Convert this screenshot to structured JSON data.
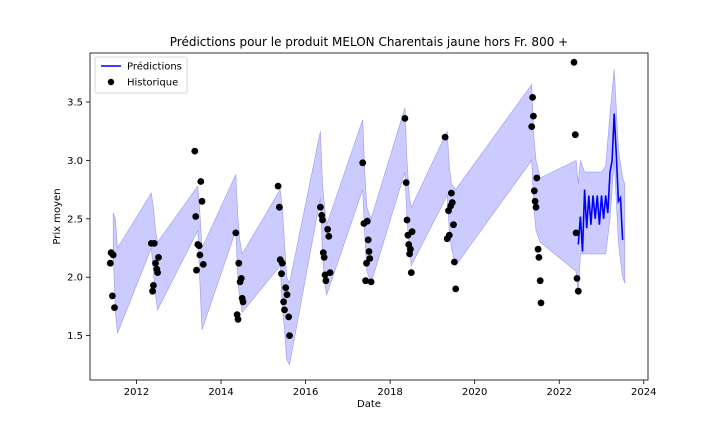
{
  "chart_data": {
    "type": "line",
    "title": "Prédictions pour le produit MELON Charentais jaune hors Fr. 800 +",
    "xlabel": "Date",
    "ylabel": "Prix moyen",
    "xlim": [
      2010.9,
      2024.1
    ],
    "ylim": [
      1.12,
      3.92
    ],
    "x_ticks": [
      2012,
      2014,
      2016,
      2018,
      2020,
      2022,
      2024
    ],
    "x_tick_labels": [
      "2012",
      "2014",
      "2016",
      "2018",
      "2020",
      "2022",
      "2024"
    ],
    "y_ticks": [
      1.5,
      2.0,
      2.5,
      3.0,
      3.5
    ],
    "y_tick_labels": [
      "1.5",
      "2.0",
      "2.5",
      "3.0",
      "3.5"
    ],
    "grid": false,
    "legend": {
      "position": "top-left",
      "entries": [
        {
          "label": "Prédictions",
          "color": "#0000ff",
          "kind": "line"
        },
        {
          "label": "Historique",
          "color": "#000000",
          "kind": "marker"
        }
      ]
    },
    "colors": {
      "prediction": "#0000ff",
      "band": "#c8c8ff",
      "band_edge": "#9a9af0",
      "history": "#000000"
    },
    "interval_band": {
      "name": "Intervalle",
      "x": [
        2011.45,
        2011.5,
        2011.55,
        2012.35,
        2012.4,
        2012.45,
        2012.5,
        2013.45,
        2013.5,
        2013.55,
        2014.35,
        2014.4,
        2014.45,
        2014.5,
        2015.4,
        2015.45,
        2015.5,
        2015.55,
        2015.62,
        2016.35,
        2016.4,
        2016.45,
        2016.5,
        2017.35,
        2017.4,
        2017.45,
        2017.55,
        2018.35,
        2018.4,
        2018.45,
        2018.5,
        2019.35,
        2019.4,
        2019.45,
        2019.55,
        2021.35,
        2021.4,
        2021.45,
        2021.55,
        2022.4,
        2022.45,
        2022.5,
        2022.6,
        2022.7,
        2022.8,
        2022.9,
        2023.0,
        2023.1,
        2023.2,
        2023.3,
        2023.4,
        2023.5,
        2023.55
      ],
      "upper": [
        2.55,
        2.5,
        2.25,
        2.72,
        2.6,
        2.4,
        2.3,
        2.78,
        2.55,
        2.25,
        2.88,
        2.5,
        2.3,
        2.2,
        2.75,
        2.6,
        2.3,
        2.0,
        1.95,
        3.25,
        2.8,
        2.6,
        2.45,
        3.35,
        2.9,
        2.6,
        2.5,
        3.45,
        3.0,
        2.7,
        2.6,
        3.25,
        2.95,
        2.8,
        2.75,
        3.65,
        3.2,
        3.0,
        2.85,
        3.0,
        2.8,
        3.0,
        2.9,
        2.9,
        2.9,
        2.9,
        2.9,
        2.95,
        3.4,
        3.78,
        3.1,
        2.85,
        2.8
      ],
      "lower": [
        2.2,
        1.7,
        1.52,
        2.25,
        2.05,
        1.85,
        1.72,
        2.4,
        1.95,
        1.55,
        2.4,
        1.95,
        1.8,
        1.7,
        2.1,
        1.75,
        1.55,
        1.3,
        1.25,
        2.68,
        2.2,
        1.95,
        1.85,
        2.75,
        2.35,
        2.05,
        1.95,
        2.9,
        2.5,
        2.25,
        2.1,
        2.7,
        2.4,
        2.25,
        2.1,
        3.0,
        2.6,
        2.4,
        2.3,
        2.05,
        1.85,
        2.2,
        2.2,
        2.2,
        2.2,
        2.2,
        2.2,
        2.2,
        2.5,
        3.0,
        2.3,
        2.0,
        1.95
      ]
    },
    "series": [
      {
        "name": "Prédictions",
        "x": [
          2022.45,
          2022.5,
          2022.55,
          2022.6,
          2022.65,
          2022.7,
          2022.75,
          2022.8,
          2022.85,
          2022.9,
          2022.95,
          2023.0,
          2023.05,
          2023.1,
          2023.15,
          2023.2,
          2023.25,
          2023.3,
          2023.35,
          2023.4,
          2023.45,
          2023.5
        ],
        "y": [
          2.28,
          2.52,
          2.22,
          2.75,
          2.42,
          2.7,
          2.45,
          2.7,
          2.5,
          2.7,
          2.45,
          2.7,
          2.5,
          2.7,
          2.55,
          2.9,
          3.0,
          3.4,
          3.05,
          2.65,
          2.68,
          2.32
        ]
      },
      {
        "name": "Historique",
        "x": [
          2011.38,
          2011.4,
          2011.43,
          2011.45,
          2011.48,
          2012.35,
          2012.38,
          2012.4,
          2012.42,
          2012.45,
          2012.48,
          2012.5,
          2012.52,
          2013.38,
          2013.4,
          2013.42,
          2013.45,
          2013.48,
          2013.5,
          2013.52,
          2013.55,
          2013.58,
          2014.35,
          2014.38,
          2014.4,
          2014.42,
          2014.45,
          2014.48,
          2014.5,
          2014.52,
          2015.35,
          2015.38,
          2015.4,
          2015.43,
          2015.45,
          2015.48,
          2015.5,
          2015.53,
          2015.56,
          2015.6,
          2015.62,
          2016.35,
          2016.38,
          2016.4,
          2016.42,
          2016.44,
          2016.46,
          2016.48,
          2016.52,
          2016.55,
          2016.58,
          2017.35,
          2017.38,
          2017.42,
          2017.44,
          2017.46,
          2017.48,
          2017.5,
          2017.52,
          2017.55,
          2018.35,
          2018.38,
          2018.4,
          2018.42,
          2018.44,
          2018.46,
          2018.48,
          2018.5,
          2018.52,
          2019.3,
          2019.35,
          2019.38,
          2019.4,
          2019.43,
          2019.45,
          2019.47,
          2019.5,
          2019.52,
          2019.55,
          2021.35,
          2021.37,
          2021.39,
          2021.41,
          2021.43,
          2021.45,
          2021.47,
          2021.5,
          2021.52,
          2021.55,
          2021.57,
          2022.35,
          2022.38,
          2022.4,
          2022.42,
          2022.45
        ],
        "y": [
          2.12,
          2.21,
          1.84,
          2.19,
          1.74,
          2.29,
          1.88,
          1.93,
          2.29,
          2.12,
          2.07,
          2.04,
          2.17,
          3.08,
          2.52,
          2.06,
          2.28,
          2.27,
          2.19,
          2.82,
          2.65,
          2.11,
          2.38,
          1.68,
          1.64,
          2.12,
          1.96,
          1.99,
          1.82,
          1.79,
          2.78,
          2.6,
          2.15,
          2.03,
          2.12,
          1.79,
          1.72,
          1.91,
          1.85,
          1.66,
          1.5,
          2.6,
          2.53,
          2.49,
          2.21,
          2.17,
          2.02,
          1.97,
          2.41,
          2.35,
          2.04,
          2.98,
          2.46,
          1.97,
          2.12,
          2.48,
          2.32,
          2.22,
          2.16,
          1.96,
          3.36,
          2.81,
          2.49,
          2.36,
          2.28,
          2.2,
          2.24,
          2.04,
          2.39,
          3.2,
          2.33,
          2.57,
          2.36,
          2.61,
          2.72,
          2.64,
          2.45,
          2.13,
          1.9,
          3.29,
          3.54,
          3.38,
          2.74,
          2.65,
          2.6,
          2.85,
          2.24,
          2.17,
          1.97,
          1.78,
          3.84,
          3.22,
          2.38,
          1.99,
          1.88
        ]
      }
    ]
  }
}
